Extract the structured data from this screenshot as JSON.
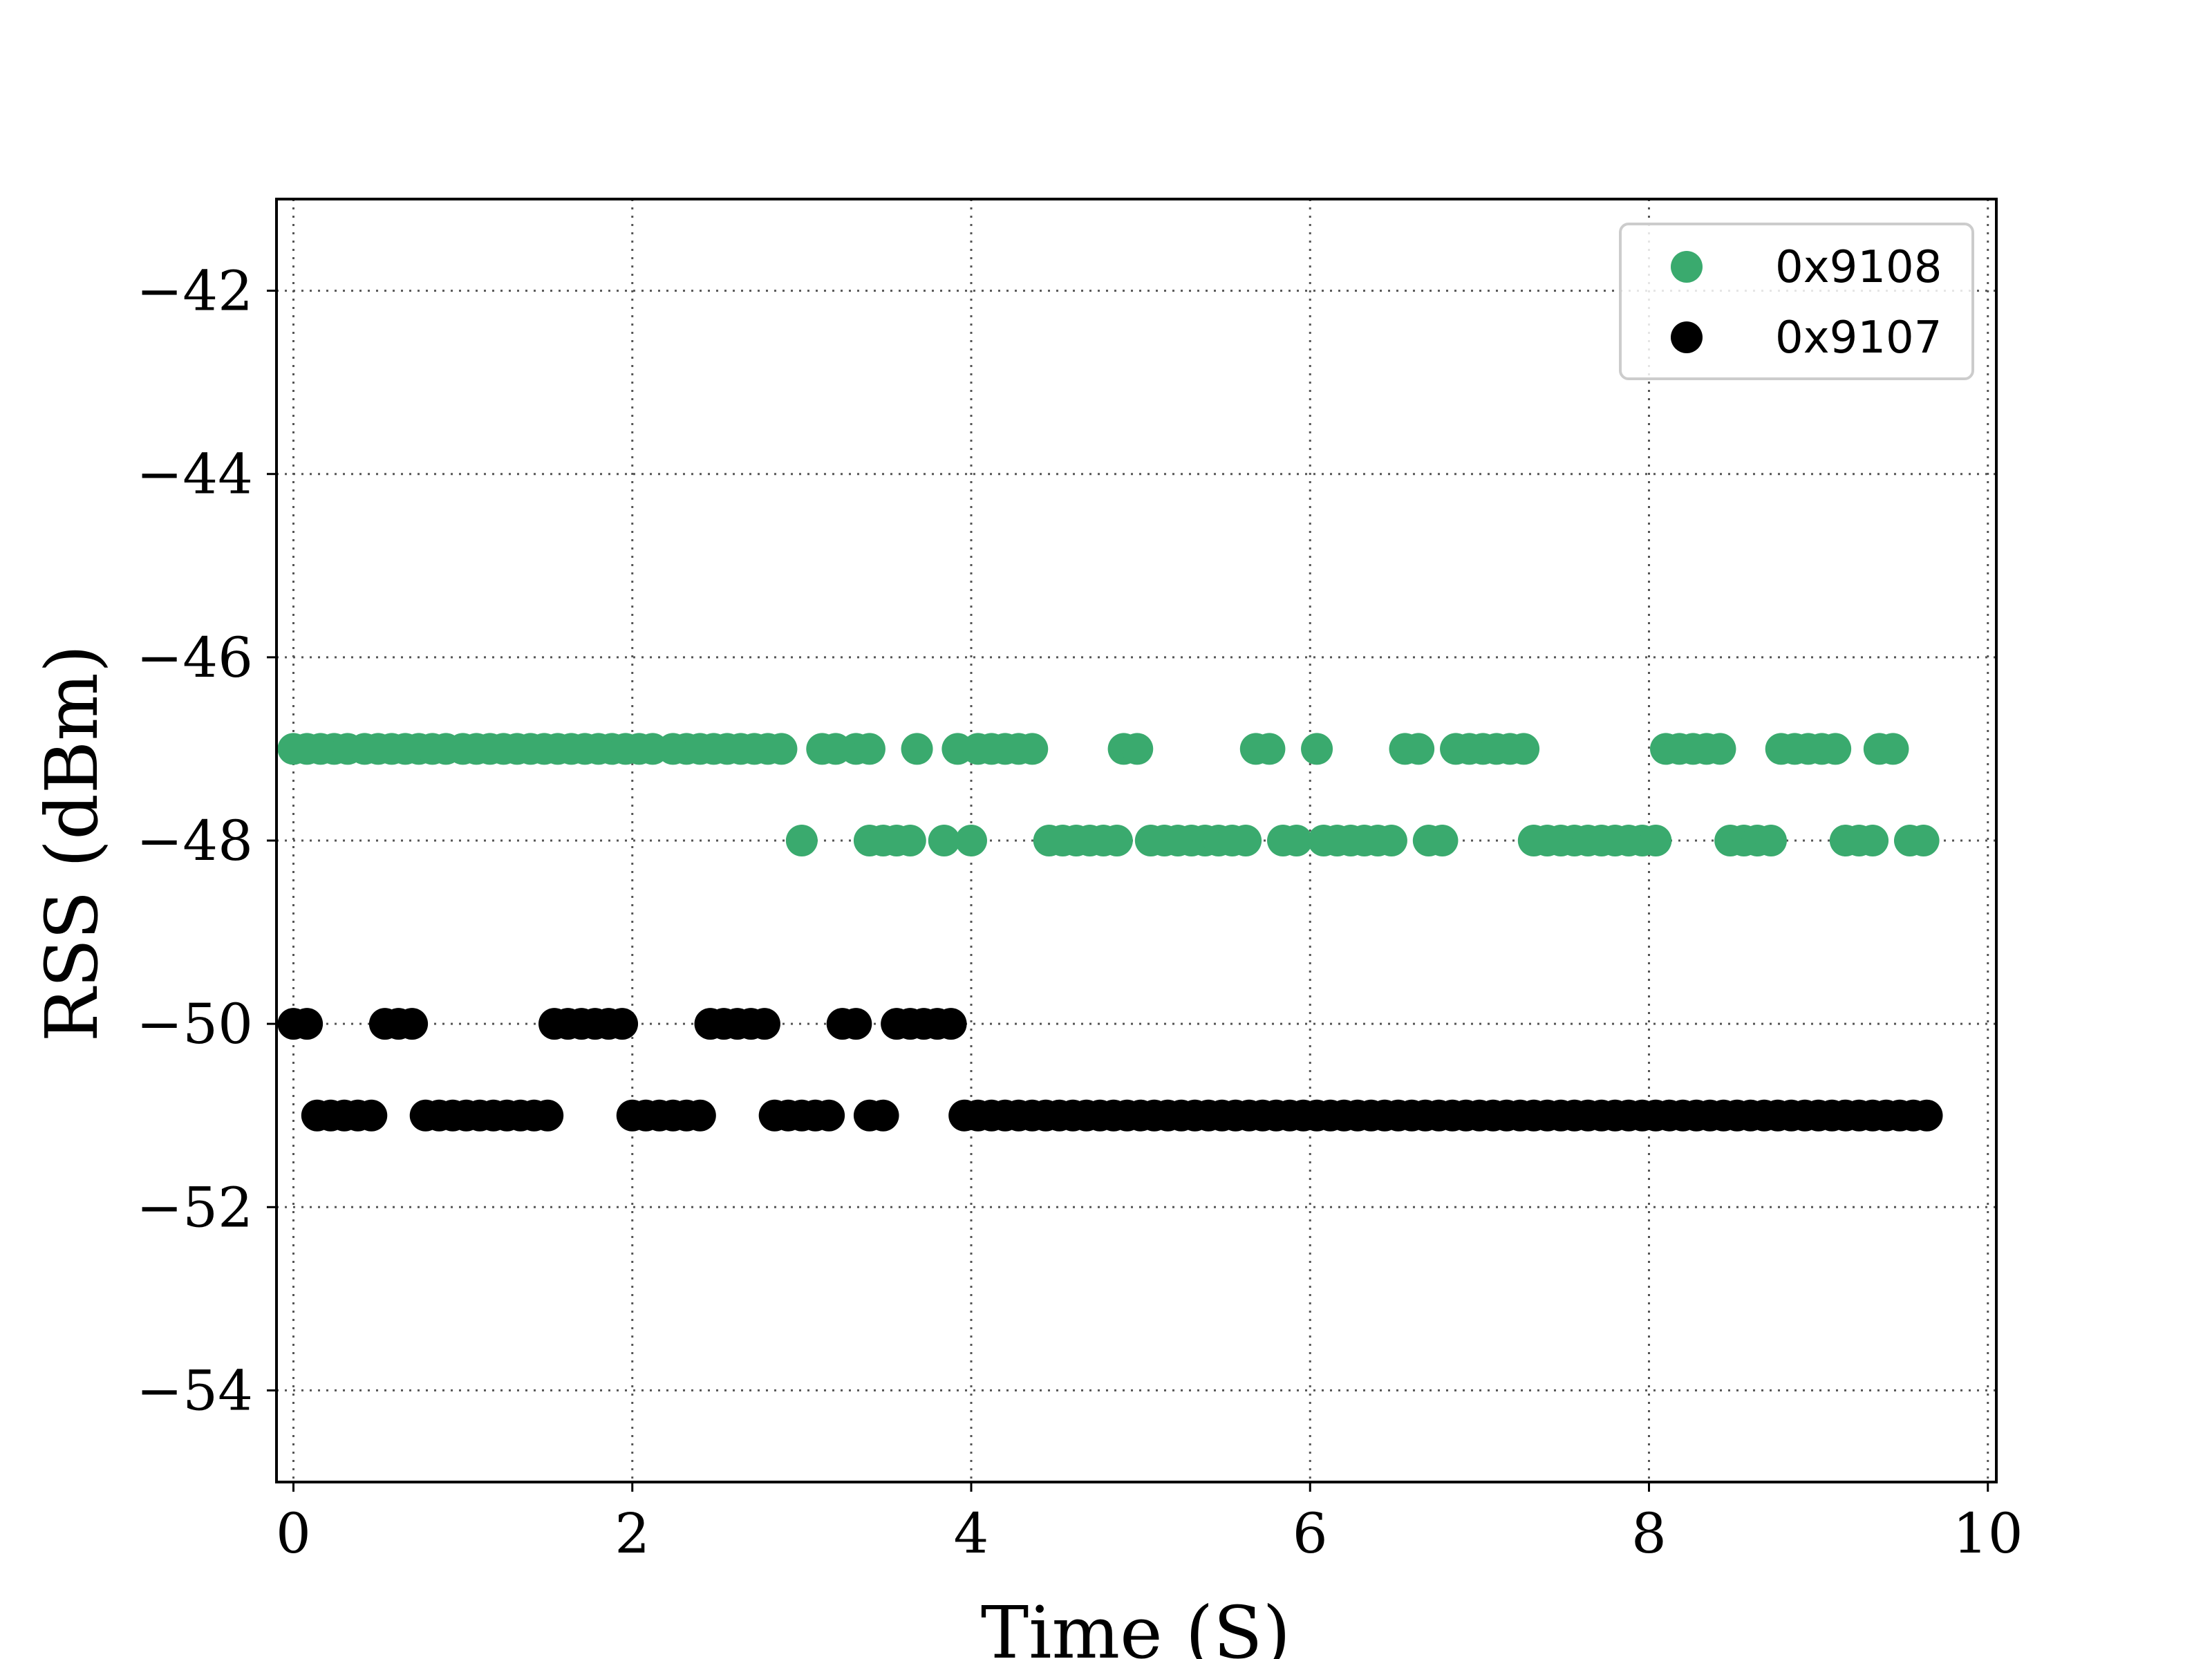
{
  "chart_data": {
    "type": "scatter",
    "xlabel": "Time (S)",
    "ylabel": "RSS (dBm)",
    "xlim": [
      -0.1,
      10.05
    ],
    "ylim": [
      -55,
      -41
    ],
    "xticks": [
      0,
      2,
      4,
      6,
      8,
      10
    ],
    "xtick_labels": [
      "0",
      "2",
      "4",
      "6",
      "8",
      "10"
    ],
    "yticks": [
      -42,
      -44,
      -46,
      -48,
      -50,
      -52,
      -54
    ],
    "ytick_labels": [
      "−42",
      "−44",
      "−46",
      "−48",
      "−50",
      "−52",
      "−54"
    ],
    "grid": true,
    "legend_position": "top-right",
    "series": [
      {
        "name": "0x9108",
        "color": "#3aaa6e",
        "points": [
          [
            0.0,
            -47
          ],
          [
            0.08,
            -47
          ],
          [
            0.16,
            -47
          ],
          [
            0.24,
            -47
          ],
          [
            0.32,
            -47
          ],
          [
            0.42,
            -47
          ],
          [
            0.5,
            -47
          ],
          [
            0.58,
            -47
          ],
          [
            0.66,
            -47
          ],
          [
            0.74,
            -47
          ],
          [
            0.82,
            -47
          ],
          [
            0.9,
            -47
          ],
          [
            1.0,
            -47
          ],
          [
            1.08,
            -47
          ],
          [
            1.16,
            -47
          ],
          [
            1.24,
            -47
          ],
          [
            1.32,
            -47
          ],
          [
            1.4,
            -47
          ],
          [
            1.48,
            -47
          ],
          [
            1.56,
            -47
          ],
          [
            1.64,
            -47
          ],
          [
            1.72,
            -47
          ],
          [
            1.8,
            -47
          ],
          [
            1.88,
            -47
          ],
          [
            1.96,
            -47
          ],
          [
            2.04,
            -47
          ],
          [
            2.12,
            -47
          ],
          [
            2.24,
            -47
          ],
          [
            2.32,
            -47
          ],
          [
            2.4,
            -47
          ],
          [
            2.48,
            -47
          ],
          [
            2.56,
            -47
          ],
          [
            2.64,
            -47
          ],
          [
            2.72,
            -47
          ],
          [
            2.8,
            -47
          ],
          [
            2.88,
            -47
          ],
          [
            3.0,
            -48
          ],
          [
            3.12,
            -47
          ],
          [
            3.2,
            -47
          ],
          [
            3.32,
            -47
          ],
          [
            3.4,
            -47
          ],
          [
            3.4,
            -48
          ],
          [
            3.48,
            -48
          ],
          [
            3.56,
            -48
          ],
          [
            3.64,
            -48
          ],
          [
            3.68,
            -47
          ],
          [
            3.84,
            -48
          ],
          [
            3.92,
            -47
          ],
          [
            4.0,
            -48
          ],
          [
            4.04,
            -47
          ],
          [
            4.12,
            -47
          ],
          [
            4.2,
            -47
          ],
          [
            4.28,
            -47
          ],
          [
            4.36,
            -47
          ],
          [
            4.46,
            -48
          ],
          [
            4.54,
            -48
          ],
          [
            4.62,
            -48
          ],
          [
            4.7,
            -48
          ],
          [
            4.78,
            -48
          ],
          [
            4.86,
            -48
          ],
          [
            4.9,
            -47
          ],
          [
            4.98,
            -47
          ],
          [
            5.06,
            -48
          ],
          [
            5.14,
            -48
          ],
          [
            5.22,
            -48
          ],
          [
            5.3,
            -48
          ],
          [
            5.38,
            -48
          ],
          [
            5.46,
            -48
          ],
          [
            5.54,
            -48
          ],
          [
            5.62,
            -48
          ],
          [
            5.68,
            -47
          ],
          [
            5.76,
            -47
          ],
          [
            5.84,
            -48
          ],
          [
            5.92,
            -48
          ],
          [
            6.04,
            -47
          ],
          [
            6.08,
            -48
          ],
          [
            6.16,
            -48
          ],
          [
            6.24,
            -48
          ],
          [
            6.32,
            -48
          ],
          [
            6.4,
            -48
          ],
          [
            6.48,
            -48
          ],
          [
            6.56,
            -47
          ],
          [
            6.64,
            -47
          ],
          [
            6.7,
            -48
          ],
          [
            6.78,
            -48
          ],
          [
            6.86,
            -47
          ],
          [
            6.94,
            -47
          ],
          [
            7.02,
            -47
          ],
          [
            7.1,
            -47
          ],
          [
            7.18,
            -47
          ],
          [
            7.26,
            -47
          ],
          [
            7.32,
            -48
          ],
          [
            7.4,
            -48
          ],
          [
            7.48,
            -48
          ],
          [
            7.56,
            -48
          ],
          [
            7.64,
            -48
          ],
          [
            7.72,
            -48
          ],
          [
            7.8,
            -48
          ],
          [
            7.88,
            -48
          ],
          [
            7.96,
            -48
          ],
          [
            8.04,
            -48
          ],
          [
            8.1,
            -47
          ],
          [
            8.18,
            -47
          ],
          [
            8.26,
            -47
          ],
          [
            8.34,
            -47
          ],
          [
            8.42,
            -47
          ],
          [
            8.48,
            -48
          ],
          [
            8.56,
            -48
          ],
          [
            8.64,
            -48
          ],
          [
            8.72,
            -48
          ],
          [
            8.78,
            -47
          ],
          [
            8.86,
            -47
          ],
          [
            8.94,
            -47
          ],
          [
            9.02,
            -47
          ],
          [
            9.1,
            -47
          ],
          [
            9.16,
            -48
          ],
          [
            9.24,
            -48
          ],
          [
            9.32,
            -48
          ],
          [
            9.36,
            -47
          ],
          [
            9.44,
            -47
          ],
          [
            9.54,
            -48
          ],
          [
            9.62,
            -48
          ]
        ]
      },
      {
        "name": "0x9107",
        "color": "#000000",
        "points": [
          [
            0.0,
            -50
          ],
          [
            0.08,
            -50
          ],
          [
            0.14,
            -51
          ],
          [
            0.22,
            -51
          ],
          [
            0.3,
            -51
          ],
          [
            0.38,
            -51
          ],
          [
            0.46,
            -51
          ],
          [
            0.54,
            -50
          ],
          [
            0.62,
            -50
          ],
          [
            0.7,
            -50
          ],
          [
            0.78,
            -51
          ],
          [
            0.86,
            -51
          ],
          [
            0.94,
            -51
          ],
          [
            1.02,
            -51
          ],
          [
            1.1,
            -51
          ],
          [
            1.18,
            -51
          ],
          [
            1.26,
            -51
          ],
          [
            1.34,
            -51
          ],
          [
            1.42,
            -51
          ],
          [
            1.5,
            -51
          ],
          [
            1.54,
            -50
          ],
          [
            1.62,
            -50
          ],
          [
            1.7,
            -50
          ],
          [
            1.78,
            -50
          ],
          [
            1.86,
            -50
          ],
          [
            1.94,
            -50
          ],
          [
            2.0,
            -51
          ],
          [
            2.08,
            -51
          ],
          [
            2.16,
            -51
          ],
          [
            2.24,
            -51
          ],
          [
            2.32,
            -51
          ],
          [
            2.4,
            -51
          ],
          [
            2.46,
            -50
          ],
          [
            2.54,
            -50
          ],
          [
            2.62,
            -50
          ],
          [
            2.7,
            -50
          ],
          [
            2.78,
            -50
          ],
          [
            2.84,
            -51
          ],
          [
            2.92,
            -51
          ],
          [
            3.0,
            -51
          ],
          [
            3.08,
            -51
          ],
          [
            3.16,
            -51
          ],
          [
            3.24,
            -50
          ],
          [
            3.32,
            -50
          ],
          [
            3.4,
            -51
          ],
          [
            3.48,
            -51
          ],
          [
            3.56,
            -50
          ],
          [
            3.64,
            -50
          ],
          [
            3.72,
            -50
          ],
          [
            3.8,
            -50
          ],
          [
            3.88,
            -50
          ],
          [
            3.96,
            -51
          ],
          [
            4.04,
            -51
          ],
          [
            4.12,
            -51
          ],
          [
            4.2,
            -51
          ],
          [
            4.28,
            -51
          ],
          [
            4.36,
            -51
          ],
          [
            4.44,
            -51
          ],
          [
            4.52,
            -51
          ],
          [
            4.6,
            -51
          ],
          [
            4.68,
            -51
          ],
          [
            4.76,
            -51
          ],
          [
            4.84,
            -51
          ],
          [
            4.92,
            -51
          ],
          [
            5.0,
            -51
          ],
          [
            5.08,
            -51
          ],
          [
            5.16,
            -51
          ],
          [
            5.24,
            -51
          ],
          [
            5.32,
            -51
          ],
          [
            5.4,
            -51
          ],
          [
            5.48,
            -51
          ],
          [
            5.56,
            -51
          ],
          [
            5.64,
            -51
          ],
          [
            5.72,
            -51
          ],
          [
            5.8,
            -51
          ],
          [
            5.88,
            -51
          ],
          [
            5.96,
            -51
          ],
          [
            6.04,
            -51
          ],
          [
            6.12,
            -51
          ],
          [
            6.2,
            -51
          ],
          [
            6.28,
            -51
          ],
          [
            6.36,
            -51
          ],
          [
            6.44,
            -51
          ],
          [
            6.52,
            -51
          ],
          [
            6.6,
            -51
          ],
          [
            6.68,
            -51
          ],
          [
            6.76,
            -51
          ],
          [
            6.84,
            -51
          ],
          [
            6.92,
            -51
          ],
          [
            7.0,
            -51
          ],
          [
            7.08,
            -51
          ],
          [
            7.16,
            -51
          ],
          [
            7.24,
            -51
          ],
          [
            7.32,
            -51
          ],
          [
            7.4,
            -51
          ],
          [
            7.48,
            -51
          ],
          [
            7.56,
            -51
          ],
          [
            7.64,
            -51
          ],
          [
            7.72,
            -51
          ],
          [
            7.8,
            -51
          ],
          [
            7.88,
            -51
          ],
          [
            7.96,
            -51
          ],
          [
            8.04,
            -51
          ],
          [
            8.12,
            -51
          ],
          [
            8.2,
            -51
          ],
          [
            8.28,
            -51
          ],
          [
            8.36,
            -51
          ],
          [
            8.44,
            -51
          ],
          [
            8.52,
            -51
          ],
          [
            8.6,
            -51
          ],
          [
            8.68,
            -51
          ],
          [
            8.76,
            -51
          ],
          [
            8.84,
            -51
          ],
          [
            8.92,
            -51
          ],
          [
            9.0,
            -51
          ],
          [
            9.08,
            -51
          ],
          [
            9.16,
            -51
          ],
          [
            9.24,
            -51
          ],
          [
            9.32,
            -51
          ],
          [
            9.4,
            -51
          ],
          [
            9.48,
            -51
          ],
          [
            9.56,
            -51
          ],
          [
            9.64,
            -51
          ]
        ]
      }
    ]
  }
}
